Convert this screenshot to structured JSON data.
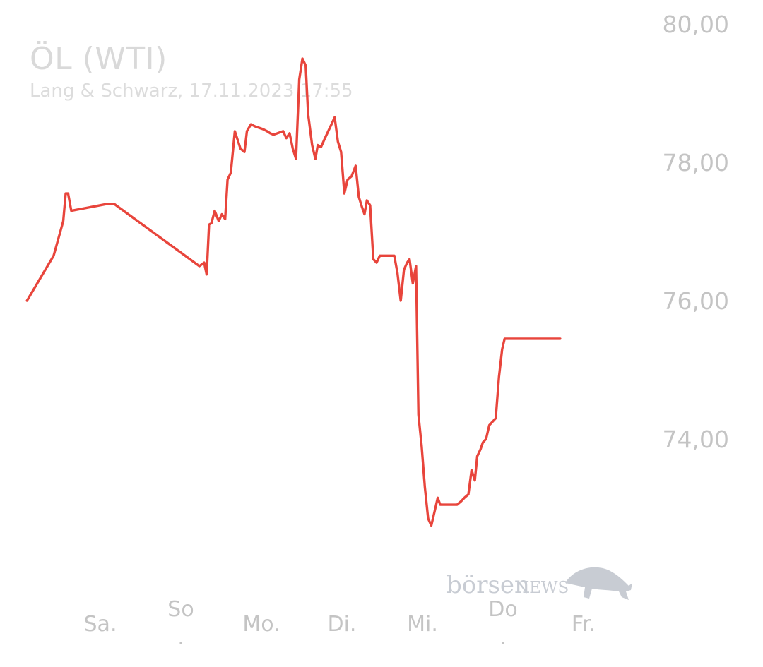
{
  "chart_data": {
    "type": "line",
    "title": "ÖL (WTI)",
    "subtitle": "Lang & Schwarz, 17.11.2023 17:55",
    "ylim": [
      72.2,
      80.2
    ],
    "y_ticks": [
      {
        "value": 80,
        "label": "80,00"
      },
      {
        "value": 78,
        "label": "78,00"
      },
      {
        "value": 76,
        "label": "76,00"
      },
      {
        "value": 74,
        "label": "74,00"
      }
    ],
    "x_labels": [
      {
        "label": "Sa.",
        "x": 1.0
      },
      {
        "label": "So\n.",
        "x": 2.0
      },
      {
        "label": "Mo.",
        "x": 3.0
      },
      {
        "label": "Di.",
        "x": 4.0
      },
      {
        "label": "Mi.",
        "x": 5.0
      },
      {
        "label": "Do\n.",
        "x": 6.0
      },
      {
        "label": "Fr.",
        "x": 7.0
      }
    ],
    "grid": false,
    "legend": "none",
    "color": "#e8453c",
    "series": [
      {
        "x": [
          0.16,
          0.49,
          0.61,
          0.64,
          0.67,
          0.71,
          1.16,
          1.24,
          2.3,
          2.36,
          2.39,
          2.42,
          2.45,
          2.49,
          2.54,
          2.58,
          2.62,
          2.65,
          2.69,
          2.74,
          2.81,
          2.86,
          2.89,
          2.94,
          2.99,
          3.04,
          3.09,
          3.14,
          3.18,
          3.22,
          3.34,
          3.38,
          3.42,
          3.46,
          3.5,
          3.54,
          3.58,
          3.62,
          3.65,
          3.7,
          3.74,
          3.77,
          3.81,
          3.86,
          3.9,
          3.94,
          3.98,
          4.02,
          4.06,
          4.1,
          4.14,
          4.19,
          4.24,
          4.28,
          4.32,
          4.35,
          4.38,
          4.42,
          4.46,
          4.5,
          4.54,
          4.58,
          4.63,
          4.68,
          4.72,
          4.76,
          4.8,
          4.84,
          4.88,
          4.91,
          4.95,
          4.99,
          5.02,
          5.06,
          5.1,
          5.14,
          5.18,
          5.22,
          5.26,
          5.29,
          5.33,
          5.37,
          5.4,
          5.45,
          5.5,
          5.55,
          5.59,
          5.64,
          5.68,
          5.72,
          5.75,
          5.79,
          5.82,
          5.86,
          5.9,
          5.94,
          5.98,
          6.02,
          6.06,
          6.09,
          6.13,
          6.17,
          6.2,
          6.24,
          6.28,
          6.32,
          6.35,
          6.39,
          6.42,
          6.46,
          6.49,
          6.53,
          6.56,
          6.59,
          6.63,
          6.67,
          6.71,
          6.74,
          6.78
        ],
        "y": [
          76.0,
          76.65,
          77.15,
          77.55,
          77.55,
          77.3,
          77.4,
          77.4,
          76.5,
          76.55,
          76.38,
          77.1,
          77.12,
          77.3,
          77.15,
          77.25,
          77.18,
          77.75,
          77.85,
          78.45,
          78.2,
          78.15,
          78.45,
          78.55,
          78.52,
          78.5,
          78.48,
          78.45,
          78.42,
          78.4,
          78.45,
          78.35,
          78.42,
          78.2,
          78.05,
          79.2,
          79.5,
          79.4,
          78.7,
          78.25,
          78.05,
          78.25,
          78.22,
          78.35,
          78.45,
          78.55,
          78.65,
          78.3,
          78.15,
          77.55,
          77.75,
          77.8,
          77.95,
          77.5,
          77.35,
          77.25,
          77.45,
          77.38,
          76.6,
          76.55,
          76.65,
          76.65,
          76.65,
          76.65,
          76.65,
          76.4,
          76.0,
          76.45,
          76.55,
          76.6,
          76.25,
          76.5,
          74.35,
          73.9,
          73.3,
          72.85,
          72.75,
          72.95,
          73.15,
          73.05,
          73.05,
          73.05,
          73.05,
          73.05,
          73.05,
          73.1,
          73.15,
          73.2,
          73.55,
          73.4,
          73.75,
          73.85,
          73.95,
          74.0,
          74.2,
          74.25,
          74.3,
          74.9,
          75.3,
          75.45,
          75.45,
          75.45,
          75.45,
          75.45,
          75.45,
          75.45,
          75.45,
          75.45,
          75.45,
          75.45,
          75.45,
          75.45,
          75.45,
          75.45,
          75.45,
          75.45,
          75.45,
          75.45,
          75.45
        ]
      }
    ]
  },
  "watermark": {
    "brand_a": "börsen",
    "brand_b": "NEWS",
    "icon": "bull-icon"
  }
}
